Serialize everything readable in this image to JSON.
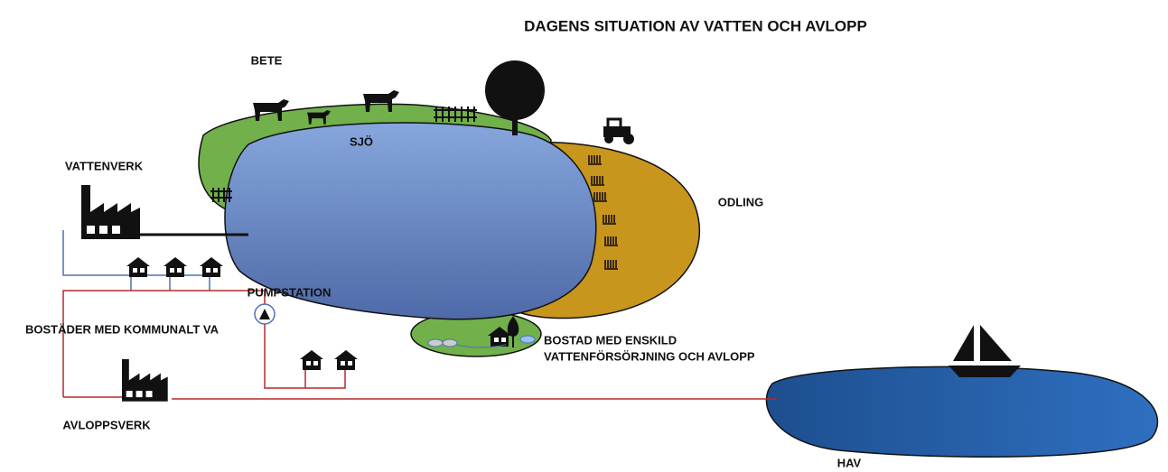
{
  "title": "DAGENS SITUATION AV VATTEN OCH AVLOPP",
  "nodes": [
    {
      "label": "BETE"
    },
    {
      "label": "SJÖ"
    },
    {
      "label": "VATTENVERK"
    },
    {
      "label": "ODLING"
    },
    {
      "label": "PUMPSTATION"
    },
    {
      "label": "BOSTÄDER MED KOMMUNALT VA"
    },
    {
      "lines": [
        "BOSTAD MED ENSKILD",
        "VATTENFÖRSÖRJNING OCH AVLOPP"
      ]
    },
    {
      "label": "AVLOPPSVERK"
    },
    {
      "label": "HAV"
    }
  ]
}
